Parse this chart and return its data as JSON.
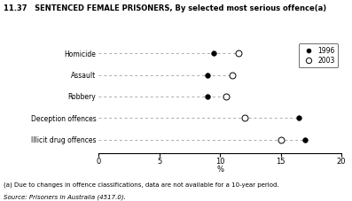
{
  "title": "11.37   SENTENCED FEMALE PRISONERS, By selected most serious offence(a)",
  "categories": [
    "Homicide",
    "Assault",
    "Robbery",
    "Deception offences",
    "Illicit drug offences"
  ],
  "values_1996": [
    9.5,
    9.0,
    9.0,
    16.5,
    17.0
  ],
  "values_2003": [
    11.5,
    11.0,
    10.5,
    12.0,
    15.0
  ],
  "xlabel": "%",
  "xlim": [
    0,
    20
  ],
  "xticks": [
    0,
    5,
    10,
    15,
    20
  ],
  "legend_labels": [
    "1996",
    "2003"
  ],
  "footnote1": "(a) Due to changes in offence classifications, data are not available for a 10-year period.",
  "footnote2": "Source: Prisoners in Australia (4517.0).",
  "marker_size_filled": 4,
  "marker_size_open": 5
}
